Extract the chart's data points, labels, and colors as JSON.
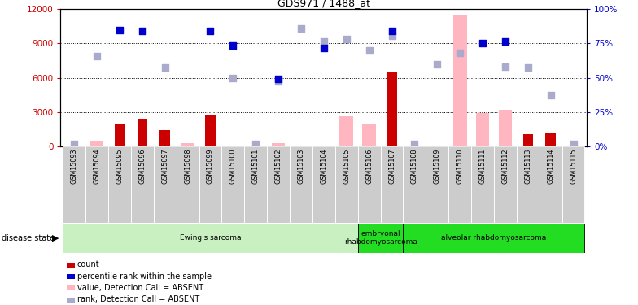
{
  "title": "GDS971 / 1488_at",
  "samples": [
    "GSM15093",
    "GSM15094",
    "GSM15095",
    "GSM15096",
    "GSM15097",
    "GSM15098",
    "GSM15099",
    "GSM15100",
    "GSM15101",
    "GSM15102",
    "GSM15103",
    "GSM15104",
    "GSM15105",
    "GSM15106",
    "GSM15107",
    "GSM15108",
    "GSM15109",
    "GSM15110",
    "GSM15111",
    "GSM15112",
    "GSM15113",
    "GSM15114",
    "GSM15115"
  ],
  "count_values": [
    0,
    0,
    2000,
    2400,
    1400,
    0,
    2700,
    0,
    0,
    0,
    0,
    0,
    0,
    0,
    6500,
    0,
    0,
    0,
    0,
    0,
    1100,
    1200,
    0
  ],
  "value_absent": [
    0,
    500,
    0,
    0,
    0,
    300,
    0,
    0,
    0,
    300,
    0,
    0,
    2600,
    1900,
    0,
    0,
    0,
    11500,
    2900,
    3200,
    0,
    0,
    0
  ],
  "pct_rank": [
    0,
    0,
    10200,
    10100,
    0,
    0,
    10100,
    8800,
    0,
    5900,
    0,
    8600,
    0,
    0,
    10100,
    0,
    0,
    0,
    9000,
    9200,
    0,
    0,
    0
  ],
  "rank_absent": [
    200,
    7900,
    0,
    0,
    6900,
    0,
    0,
    6000,
    200,
    5700,
    10300,
    9200,
    9400,
    8400,
    9700,
    200,
    7200,
    8200,
    0,
    7000,
    6900,
    4500,
    200
  ],
  "disease_groups": [
    {
      "label": "Ewing's sarcoma",
      "start": 0,
      "end": 13,
      "color": "#c8f0c0"
    },
    {
      "label": "embryonal\nrhabdomyosarcoma",
      "start": 13,
      "end": 15,
      "color": "#22dd22"
    },
    {
      "label": "alveolar rhabdomyosarcoma",
      "start": 15,
      "end": 23,
      "color": "#22dd22"
    }
  ],
  "ylim_left": [
    0,
    12000
  ],
  "ylim_right": [
    0,
    100
  ],
  "yticks_left": [
    0,
    3000,
    6000,
    9000,
    12000
  ],
  "yticks_right": [
    0,
    25,
    50,
    75,
    100
  ],
  "color_count": "#CC0000",
  "color_value_absent": "#FFB6C1",
  "color_pct_rank": "#0000CC",
  "color_rank_absent": "#AAAACC",
  "color_left_axis": "#CC0000",
  "color_right_axis": "#0000CC",
  "cell_bg": "#CCCCCC",
  "legend_labels": [
    "count",
    "percentile rank within the sample",
    "value, Detection Call = ABSENT",
    "rank, Detection Call = ABSENT"
  ],
  "legend_colors": [
    "#CC0000",
    "#0000CC",
    "#FFB6C1",
    "#AAAACC"
  ]
}
